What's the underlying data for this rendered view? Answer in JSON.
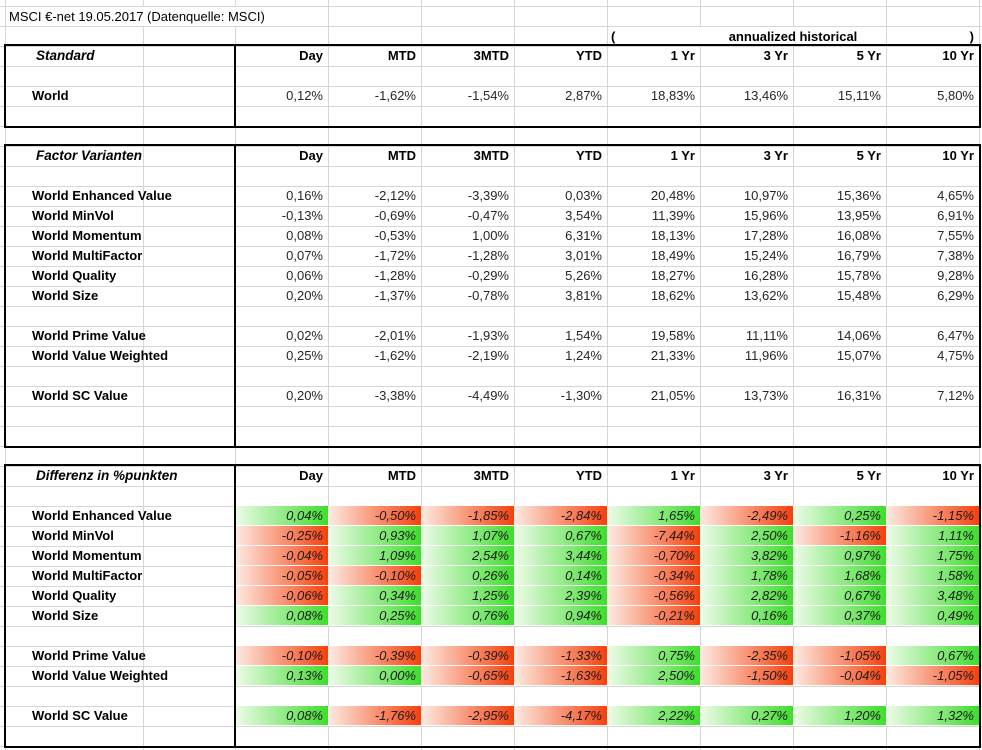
{
  "sheet": {
    "title": "MSCI €-net 19.05.2017 (Datenquelle: MSCI)",
    "annualized_header": {
      "open": "(",
      "label": "annualized historical",
      "close": ")"
    }
  },
  "columns": [
    "Day",
    "MTD",
    "3MTD",
    "YTD",
    "1 Yr",
    "3 Yr",
    "5 Yr",
    "10 Yr"
  ],
  "tables": [
    {
      "name": "standard",
      "title": "Standard",
      "colored": false,
      "rows": [
        {
          "blank": true
        },
        {
          "label": "World",
          "values": [
            "0,12%",
            "-1,62%",
            "-1,54%",
            "2,87%",
            "18,83%",
            "13,46%",
            "15,11%",
            "5,80%"
          ]
        },
        {
          "blank": true
        }
      ]
    },
    {
      "name": "factor-varianten",
      "title": "Factor Varianten",
      "colored": false,
      "rows": [
        {
          "blank": true
        },
        {
          "label": "World Enhanced Value",
          "values": [
            "0,16%",
            "-2,12%",
            "-3,39%",
            "0,03%",
            "20,48%",
            "10,97%",
            "15,36%",
            "4,65%"
          ]
        },
        {
          "label": "World MinVol",
          "values": [
            "-0,13%",
            "-0,69%",
            "-0,47%",
            "3,54%",
            "11,39%",
            "15,96%",
            "13,95%",
            "6,91%"
          ]
        },
        {
          "label": "World Momentum",
          "values": [
            "0,08%",
            "-0,53%",
            "1,00%",
            "6,31%",
            "18,13%",
            "17,28%",
            "16,08%",
            "7,55%"
          ]
        },
        {
          "label": "World MultiFactor",
          "values": [
            "0,07%",
            "-1,72%",
            "-1,28%",
            "3,01%",
            "18,49%",
            "15,24%",
            "16,79%",
            "7,38%"
          ]
        },
        {
          "label": "World Quality",
          "values": [
            "0,06%",
            "-1,28%",
            "-0,29%",
            "5,26%",
            "18,27%",
            "16,28%",
            "15,78%",
            "9,28%"
          ]
        },
        {
          "label": "World Size",
          "values": [
            "0,20%",
            "-1,37%",
            "-0,78%",
            "3,81%",
            "18,62%",
            "13,62%",
            "15,48%",
            "6,29%"
          ]
        },
        {
          "blank": true
        },
        {
          "label": "World Prime Value",
          "values": [
            "0,02%",
            "-2,01%",
            "-1,93%",
            "1,54%",
            "19,58%",
            "11,11%",
            "14,06%",
            "6,47%"
          ]
        },
        {
          "label": "World Value Weighted",
          "values": [
            "0,25%",
            "-1,62%",
            "-2,19%",
            "1,24%",
            "21,33%",
            "11,96%",
            "15,07%",
            "4,75%"
          ]
        },
        {
          "blank": true
        },
        {
          "label": "World SC Value",
          "values": [
            "0,20%",
            "-3,38%",
            "-4,49%",
            "-1,30%",
            "21,05%",
            "13,73%",
            "16,31%",
            "7,12%"
          ]
        },
        {
          "blank": true
        },
        {
          "blank": true
        }
      ]
    },
    {
      "name": "differenz-in-punkten",
      "title": "Differenz in %punkten",
      "colored": true,
      "rows": [
        {
          "blank": true
        },
        {
          "label": "World Enhanced Value",
          "values": [
            "0,04%",
            "-0,50%",
            "-1,85%",
            "-2,84%",
            "1,65%",
            "-2,49%",
            "0,25%",
            "-1,15%"
          ]
        },
        {
          "label": "World MinVol",
          "values": [
            "-0,25%",
            "0,93%",
            "1,07%",
            "0,67%",
            "-7,44%",
            "2,50%",
            "-1,16%",
            "1,11%"
          ]
        },
        {
          "label": "World Momentum",
          "values": [
            "-0,04%",
            "1,09%",
            "2,54%",
            "3,44%",
            "-0,70%",
            "3,82%",
            "0,97%",
            "1,75%"
          ]
        },
        {
          "label": "World MultiFactor",
          "values": [
            "-0,05%",
            "-0,10%",
            "0,26%",
            "0,14%",
            "-0,34%",
            "1,78%",
            "1,68%",
            "1,58%"
          ]
        },
        {
          "label": "World Quality",
          "values": [
            "-0,06%",
            "0,34%",
            "1,25%",
            "2,39%",
            "-0,56%",
            "2,82%",
            "0,67%",
            "3,48%"
          ]
        },
        {
          "label": "World Size",
          "values": [
            "0,08%",
            "0,25%",
            "0,76%",
            "0,94%",
            "-0,21%",
            "0,16%",
            "0,37%",
            "0,49%"
          ]
        },
        {
          "blank": true
        },
        {
          "label": "World Prime Value",
          "values": [
            "-0,10%",
            "-0,39%",
            "-0,39%",
            "-1,33%",
            "0,75%",
            "-2,35%",
            "-1,05%",
            "0,67%"
          ]
        },
        {
          "label": "World Value Weighted",
          "values": [
            "0,13%",
            "0,00%",
            "-0,65%",
            "-1,63%",
            "2,50%",
            "-1,50%",
            "-0,04%",
            "-1,05%"
          ]
        },
        {
          "blank": true
        },
        {
          "label": "World SC Value",
          "values": [
            "0,08%",
            "-1,76%",
            "-2,95%",
            "-4,17%",
            "2,22%",
            "0,27%",
            "1,20%",
            "1,32%"
          ]
        },
        {
          "blank": true
        }
      ]
    }
  ],
  "colors": {
    "positive_start": "#eefbe9",
    "positive_end": "#3fdd2e",
    "negative_start": "#fdebe3",
    "negative_end": "#f5400d",
    "gridline": "#d6d6d6",
    "table_border": "#000000",
    "label_text": "#000000",
    "value_text": "#262626"
  }
}
